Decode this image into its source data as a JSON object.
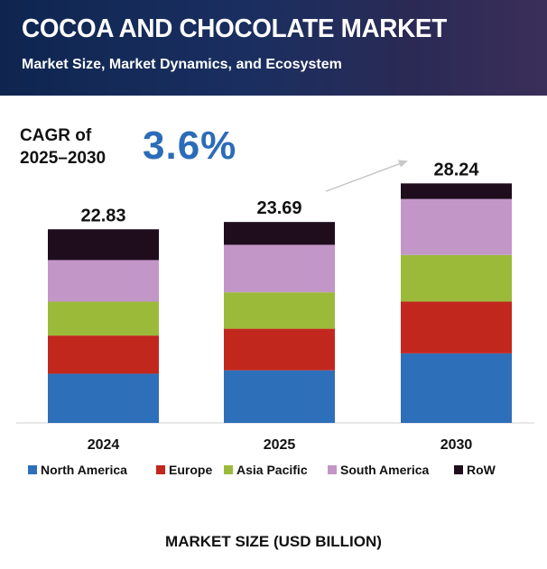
{
  "header": {
    "title": "COCOA AND CHOCOLATE MARKET",
    "subtitle": "Market Size, Market Dynamics, and Ecosystem"
  },
  "cagr": {
    "label_line1": "CAGR of",
    "label_line2": "2025–2030",
    "value": "3.6%"
  },
  "footer": {
    "axis_title": "MARKET SIZE (USD BILLION)"
  },
  "chart_data": {
    "type": "bar",
    "stacked": true,
    "categories": [
      "2024",
      "2025",
      "2030"
    ],
    "totals": [
      22.83,
      23.69,
      28.24
    ],
    "total_labels": [
      "22.83",
      "23.69",
      "28.24"
    ],
    "series": [
      {
        "name": "North America",
        "color": "#2e6fba",
        "values": [
          5.8,
          6.2,
          8.2
        ]
      },
      {
        "name": "Europe",
        "color": "#c2271e",
        "values": [
          4.5,
          4.9,
          6.1
        ]
      },
      {
        "name": "Asia Pacific",
        "color": "#9cba3a",
        "values": [
          4.0,
          4.3,
          5.5
        ]
      },
      {
        "name": "South America",
        "color": "#c396c8",
        "values": [
          4.9,
          5.6,
          6.6
        ]
      },
      {
        "name": "RoW",
        "color": "#1f0d1e",
        "values": [
          3.63,
          2.69,
          1.84
        ]
      }
    ],
    "ylim": [
      0,
      32
    ],
    "legend_position": "bottom",
    "annotation": "growth arrow from 2025 to 2030"
  }
}
